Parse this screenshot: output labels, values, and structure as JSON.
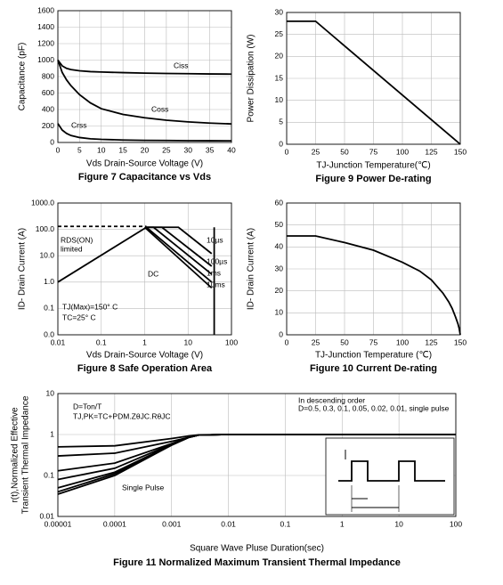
{
  "chart_data": [
    {
      "type": "line",
      "title": "Figure 7 Capacitance vs Vds",
      "xlabel": "Vds Drain-Source Voltage (V)",
      "ylabel": "Capacitance (pF)",
      "xlim": [
        0,
        40
      ],
      "xticks": [
        0,
        5,
        10,
        15,
        20,
        25,
        30,
        35,
        40
      ],
      "ylim": [
        0,
        1600
      ],
      "yticks": [
        0,
        200,
        400,
        600,
        800,
        1000,
        1200,
        1400,
        1600
      ],
      "grid": true,
      "x": [
        0,
        1,
        2,
        3,
        5,
        7.5,
        10,
        15,
        20,
        25,
        30,
        35,
        40
      ],
      "series": [
        {
          "name": "Ciss",
          "color": "#000000",
          "values": [
            1000,
            930,
            900,
            885,
            870,
            860,
            855,
            848,
            842,
            838,
            835,
            832,
            830
          ]
        },
        {
          "name": "Coss",
          "color": "#000000",
          "values": [
            1000,
            850,
            760,
            690,
            580,
            480,
            410,
            340,
            300,
            270,
            250,
            235,
            225
          ]
        },
        {
          "name": "Crss",
          "color": "#000000",
          "values": [
            230,
            150,
            110,
            85,
            60,
            45,
            38,
            30,
            26,
            24,
            22,
            21,
            20
          ]
        }
      ]
    },
    {
      "type": "line",
      "title": "Figure 9 Power De-rating",
      "xlabel": "TJ-Junction Temperature(℃)",
      "ylabel": "Power Dissipation (W)",
      "xlim": [
        0,
        150
      ],
      "xticks": [
        0,
        25,
        50,
        75,
        100,
        125,
        150
      ],
      "ylim": [
        0,
        30
      ],
      "yticks": [
        0,
        5,
        10,
        15,
        20,
        25,
        30
      ],
      "grid": true,
      "x": [
        0,
        25,
        150
      ],
      "series": [
        {
          "color": "#000000",
          "values": [
            28,
            28,
            0
          ]
        }
      ]
    },
    {
      "type": "line",
      "title": "Figure 8 Safe Operation Area",
      "xlabel": "Vds Drain-Source Voltage (V)",
      "ylabel": "ID- Drain Current (A)",
      "xscale": "log",
      "yscale": "log",
      "xlim": [
        0.01,
        100
      ],
      "xticks": [
        0.01,
        0.1,
        1,
        10,
        100
      ],
      "ylim": [
        0.01,
        1000
      ],
      "yticks": [
        {
          "value": 0.01,
          "label": "0.0"
        },
        0.1,
        {
          "value": 1,
          "label": "1.0"
        },
        {
          "value": 10,
          "label": "10.0"
        },
        {
          "value": 100,
          "label": "100.0"
        },
        {
          "value": 1000,
          "label": "1000.0"
        }
      ],
      "grid": true,
      "series": [
        {
          "color": "#000000",
          "x": [
            0.01,
            1.1
          ],
          "values": [
            1,
            120
          ]
        },
        {
          "color": "#000000",
          "style": "dashed",
          "x": [
            0.01,
            1.1
          ],
          "values": [
            130,
            130
          ]
        },
        {
          "name": "10µs",
          "color": "#000000",
          "x": [
            1.1,
            6,
            35
          ],
          "values": [
            120,
            120,
            12
          ]
        },
        {
          "name": "100µs",
          "color": "#000000",
          "x": [
            1.1,
            2.5,
            35
          ],
          "values": [
            120,
            120,
            4
          ]
        },
        {
          "name": "1ms",
          "color": "#000000",
          "x": [
            1.1,
            1.6,
            35
          ],
          "values": [
            120,
            120,
            2
          ]
        },
        {
          "name": "10ms",
          "color": "#000000",
          "x": [
            1.1,
            35
          ],
          "values": [
            120,
            1
          ]
        },
        {
          "name": "DC",
          "color": "#000000",
          "x": [
            1,
            35
          ],
          "values": [
            120,
            0.6
          ]
        },
        {
          "color": "#000000",
          "x": [
            40,
            40
          ],
          "values": [
            0.01,
            120
          ]
        }
      ],
      "annotations": [
        "RDS(ON)",
        "limited",
        "TJ(Max)=150° C",
        "TC=25° C"
      ]
    },
    {
      "type": "line",
      "title": "Figure 10 Current De-rating",
      "xlabel": "TJ-Junction Temperature (℃)",
      "ylabel": "ID- Drain Current (A)",
      "xlim": [
        0,
        150
      ],
      "xticks": [
        0,
        25,
        50,
        75,
        100,
        125,
        150
      ],
      "ylim": [
        0,
        60
      ],
      "yticks": [
        0,
        10,
        20,
        30,
        40,
        50,
        60
      ],
      "grid": true,
      "x": [
        0,
        25,
        50,
        75,
        100,
        115,
        125,
        135,
        140,
        143,
        146,
        148,
        149,
        150
      ],
      "series": [
        {
          "color": "#000000",
          "values": [
            45,
            45,
            42,
            38.5,
            33,
            29,
            25,
            19,
            15,
            12,
            8,
            5,
            3,
            0
          ]
        }
      ]
    },
    {
      "type": "line",
      "title": "Figure 11 Normalized Maximum Transient Thermal Impedance",
      "xlabel": "Square Wave Pluse Duration(sec)",
      "ylabel": [
        "r(t),Normalized Effective",
        "Transient Thermal Impedance"
      ],
      "xscale": "log",
      "yscale": "log",
      "xlim": [
        1e-05,
        100
      ],
      "xticks": [
        1e-05,
        0.0001,
        0.001,
        0.01,
        0.1,
        1,
        10,
        100
      ],
      "ylim": [
        0.01,
        10
      ],
      "yticks": [
        0.01,
        0.1,
        1,
        10
      ],
      "grid": true,
      "x": [
        1e-05,
        0.0001,
        0.001,
        0.002,
        0.003,
        0.01,
        100
      ],
      "series": [
        {
          "color": "#000000",
          "values": [
            0.5,
            0.53,
            0.8,
            0.92,
            0.98,
            1,
            1
          ]
        },
        {
          "color": "#000000",
          "values": [
            0.3,
            0.35,
            0.68,
            0.85,
            0.97,
            1,
            1
          ]
        },
        {
          "color": "#000000",
          "values": [
            0.13,
            0.2,
            0.6,
            0.85,
            0.97,
            1,
            1
          ]
        },
        {
          "color": "#000000",
          "values": [
            0.08,
            0.15,
            0.58,
            0.85,
            0.97,
            1,
            1
          ]
        },
        {
          "color": "#000000",
          "values": [
            0.05,
            0.12,
            0.56,
            0.85,
            0.97,
            1,
            1
          ]
        },
        {
          "color": "#000000",
          "values": [
            0.04,
            0.11,
            0.55,
            0.85,
            0.97,
            1,
            1
          ]
        },
        {
          "color": "#000000",
          "values": [
            0.035,
            0.1,
            0.55,
            0.85,
            0.97,
            1,
            1
          ]
        }
      ],
      "annotations": [
        "D=Ton/T",
        "TJ,PK=TC+PDM.ZθJC.RθJC",
        "In descending order",
        "D=0.5, 0.3, 0.1, 0.05, 0.02, 0.01, single pulse",
        "Single Pulse",
        "PD",
        "Ton",
        "T"
      ]
    }
  ]
}
